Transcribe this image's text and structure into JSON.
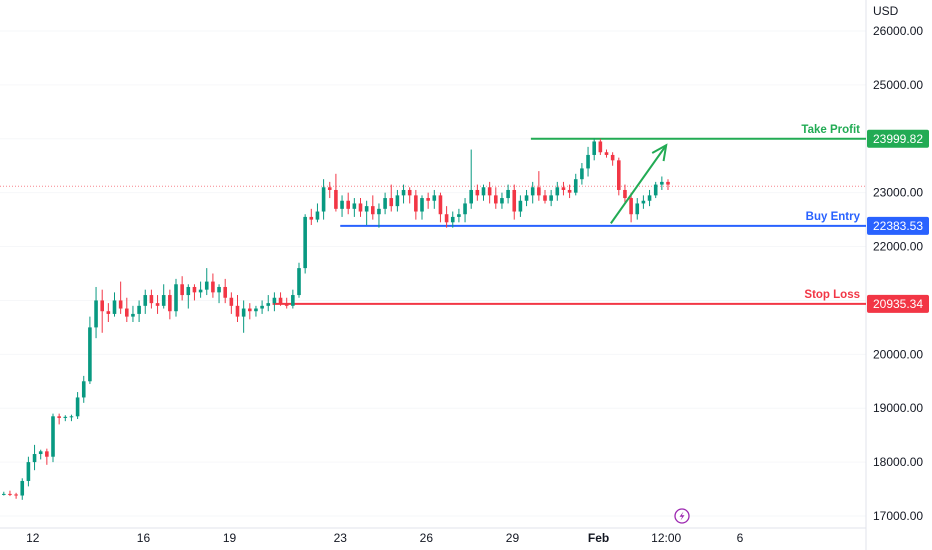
{
  "chart_data": {
    "type": "candlestick",
    "currency": "USD",
    "ylim": [
      16900,
      26400
    ],
    "y_ticks": [
      "26000.00",
      "25000.00",
      "24000.00",
      "23000.00",
      "22000.00",
      "21000.00",
      "20000.00",
      "19000.00",
      "18000.00",
      "17000.00"
    ],
    "y_tick_values": [
      26000,
      25000,
      24000,
      23000,
      22000,
      21000,
      20000,
      19000,
      18000,
      17000
    ],
    "x_ticks": [
      {
        "label": "12",
        "bar": 5
      },
      {
        "label": "16",
        "bar": 23
      },
      {
        "label": "19",
        "bar": 37
      },
      {
        "label": "23",
        "bar": 55
      },
      {
        "label": "26",
        "bar": 69
      },
      {
        "label": "29",
        "bar": 83
      },
      {
        "label": "Feb",
        "bar": 97,
        "bold": true
      },
      {
        "label": "12:00",
        "bar": 108
      },
      {
        "label": "6",
        "bar": 120
      }
    ],
    "last_price": 23120,
    "colors": {
      "up": "#089981",
      "down": "#f23645",
      "tp": "#22ab54",
      "entry": "#2962ff",
      "sl": "#f23645",
      "arrow": "#22ab54"
    },
    "levels": [
      {
        "name": "Take Profit",
        "value": 23999.82,
        "tag": "23999.82",
        "start_bar": 86
      },
      {
        "name": "Buy Entry",
        "value": 22383.53,
        "tag": "22383.53",
        "start_bar": 55
      },
      {
        "name": "Stop Loss",
        "value": 20935.34,
        "tag": "20935.34",
        "start_bar": 44
      }
    ],
    "arrow": {
      "from": {
        "bar": 99,
        "value": 22430
      },
      "to": {
        "bar": 108,
        "value": 23880
      }
    },
    "candles": [
      [
        17400,
        17450,
        17380,
        17410
      ],
      [
        17410,
        17470,
        17370,
        17400
      ],
      [
        17400,
        17430,
        17320,
        17380
      ],
      [
        17380,
        17700,
        17300,
        17650
      ],
      [
        17650,
        18100,
        17550,
        18000
      ],
      [
        18000,
        18320,
        17850,
        18150
      ],
      [
        18150,
        18230,
        18050,
        18200
      ],
      [
        18200,
        18250,
        17950,
        18100
      ],
      [
        18100,
        18900,
        18000,
        18850
      ],
      [
        18850,
        18900,
        18700,
        18820
      ],
      [
        18820,
        18870,
        18760,
        18840
      ],
      [
        18840,
        18880,
        18760,
        18850
      ],
      [
        18850,
        19300,
        18800,
        19200
      ],
      [
        19200,
        19600,
        19100,
        19500
      ],
      [
        19500,
        20700,
        19450,
        20500
      ],
      [
        20500,
        21250,
        20300,
        21000
      ],
      [
        21000,
        21200,
        20400,
        20800
      ],
      [
        20800,
        20950,
        20600,
        20750
      ],
      [
        20750,
        21150,
        20700,
        21000
      ],
      [
        21000,
        21350,
        20750,
        20850
      ],
      [
        20850,
        21050,
        20600,
        20700
      ],
      [
        20700,
        20900,
        20600,
        20750
      ],
      [
        20750,
        21000,
        20600,
        20900
      ],
      [
        20900,
        21200,
        20750,
        21100
      ],
      [
        21100,
        21200,
        20850,
        20950
      ],
      [
        20950,
        21100,
        20750,
        20900
      ],
      [
        20900,
        21300,
        20850,
        21100
      ],
      [
        21100,
        21200,
        20650,
        20800
      ],
      [
        20800,
        21400,
        20700,
        21300
      ],
      [
        21300,
        21450,
        21000,
        21100
      ],
      [
        21100,
        21300,
        20850,
        21250
      ],
      [
        21250,
        21300,
        21000,
        21150
      ],
      [
        21150,
        21350,
        21050,
        21200
      ],
      [
        21200,
        21600,
        21100,
        21350
      ],
      [
        21350,
        21500,
        21050,
        21150
      ],
      [
        21150,
        21300,
        20950,
        21250
      ],
      [
        21250,
        21400,
        20950,
        21050
      ],
      [
        21050,
        21150,
        20750,
        20900
      ],
      [
        20900,
        21100,
        20600,
        20700
      ],
      [
        20700,
        21000,
        20400,
        20850
      ],
      [
        20850,
        20950,
        20650,
        20800
      ],
      [
        20800,
        20900,
        20700,
        20850
      ],
      [
        20850,
        21000,
        20750,
        20900
      ],
      [
        20900,
        21100,
        20800,
        20950
      ],
      [
        20950,
        21150,
        20800,
        21050
      ],
      [
        21050,
        21150,
        20900,
        20950
      ],
      [
        20950,
        21050,
        20850,
        20900
      ],
      [
        20900,
        21200,
        20850,
        21100
      ],
      [
        21100,
        21700,
        21050,
        21600
      ],
      [
        21600,
        22600,
        21500,
        22550
      ],
      [
        22550,
        22700,
        22400,
        22500
      ],
      [
        22500,
        22800,
        22450,
        22650
      ],
      [
        22650,
        23250,
        22500,
        23100
      ],
      [
        23100,
        23200,
        22900,
        23050
      ],
      [
        23050,
        23350,
        22650,
        22700
      ],
      [
        22700,
        22950,
        22550,
        22850
      ],
      [
        22850,
        23000,
        22600,
        22700
      ],
      [
        22700,
        22900,
        22550,
        22800
      ],
      [
        22800,
        22900,
        22550,
        22650
      ],
      [
        22650,
        22850,
        22400,
        22750
      ],
      [
        22750,
        22950,
        22500,
        22600
      ],
      [
        22600,
        22800,
        22350,
        22700
      ],
      [
        22700,
        23000,
        22600,
        22900
      ],
      [
        22900,
        23150,
        22650,
        22750
      ],
      [
        22750,
        23050,
        22650,
        22950
      ],
      [
        22950,
        23150,
        22800,
        23050
      ],
      [
        23050,
        23100,
        22800,
        22950
      ],
      [
        22950,
        23050,
        22500,
        22650
      ],
      [
        22650,
        22950,
        22500,
        22900
      ],
      [
        22900,
        23000,
        22700,
        22850
      ],
      [
        22850,
        23050,
        22700,
        22950
      ],
      [
        22950,
        23000,
        22450,
        22600
      ],
      [
        22600,
        22750,
        22350,
        22450
      ],
      [
        22450,
        22650,
        22350,
        22550
      ],
      [
        22550,
        22700,
        22450,
        22600
      ],
      [
        22600,
        22900,
        22450,
        22800
      ],
      [
        22800,
        23800,
        22700,
        23050
      ],
      [
        23050,
        23150,
        22850,
        22950
      ],
      [
        22950,
        23150,
        22850,
        23100
      ],
      [
        23100,
        23200,
        22800,
        22950
      ],
      [
        22950,
        23100,
        22700,
        22800
      ],
      [
        22800,
        23000,
        22700,
        22900
      ],
      [
        22900,
        23150,
        22800,
        23050
      ],
      [
        23050,
        23150,
        22500,
        22650
      ],
      [
        22650,
        22950,
        22550,
        22850
      ],
      [
        22850,
        23050,
        22750,
        22950
      ],
      [
        22950,
        23200,
        22800,
        23100
      ],
      [
        23100,
        23400,
        22850,
        22950
      ],
      [
        22950,
        23050,
        22800,
        22850
      ],
      [
        22850,
        23050,
        22750,
        22950
      ],
      [
        22950,
        23200,
        22850,
        23100
      ],
      [
        23100,
        23200,
        22950,
        23050
      ],
      [
        23050,
        23150,
        22900,
        23000
      ],
      [
        23000,
        23350,
        22950,
        23250
      ],
      [
        23250,
        23550,
        23150,
        23450
      ],
      [
        23450,
        23850,
        23300,
        23700
      ],
      [
        23700,
        24000,
        23600,
        23950
      ],
      [
        23950,
        24000,
        23700,
        23750
      ],
      [
        23750,
        23800,
        23650,
        23700
      ],
      [
        23700,
        23750,
        23500,
        23600
      ],
      [
        23600,
        23650,
        22950,
        23050
      ],
      [
        23050,
        23150,
        22800,
        22900
      ],
      [
        22900,
        23000,
        22450,
        22600
      ],
      [
        22600,
        22900,
        22500,
        22800
      ],
      [
        22800,
        22950,
        22700,
        22850
      ],
      [
        22850,
        23050,
        22750,
        22950
      ],
      [
        22950,
        23200,
        22900,
        23150
      ],
      [
        23150,
        23300,
        23050,
        23200
      ],
      [
        23200,
        23250,
        23050,
        23150
      ]
    ]
  },
  "axis": {
    "currency_label": "USD"
  },
  "labels": {
    "take_profit": "Take Profit",
    "buy_entry": "Buy Entry",
    "stop_loss": "Stop Loss"
  },
  "tags": {
    "take_profit": "23999.82",
    "buy_entry": "22383.53",
    "stop_loss": "20935.34"
  },
  "icons": {
    "flash": "flash-icon"
  }
}
